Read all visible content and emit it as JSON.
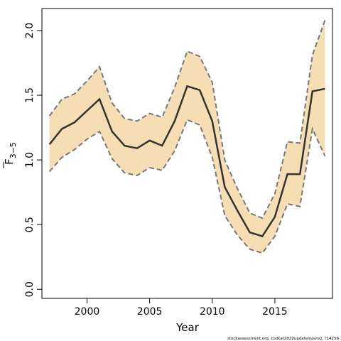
{
  "chart_data": {
    "type": "line",
    "xlabel": "Year",
    "ylabel": "F",
    "ylabel_subscript": "3−5",
    "xlim": [
      1996.4,
      2019.6
    ],
    "ylim": [
      -0.07,
      2.17
    ],
    "xticks": [
      2000,
      2005,
      2010,
      2015
    ],
    "xtick_labels": [
      "2000",
      "2005",
      "2010",
      "2015"
    ],
    "yticks": [
      0.0,
      0.5,
      1.0,
      1.5,
      2.0
    ],
    "ytick_labels": [
      "0.0",
      "0.5",
      "1.0",
      "1.5",
      "2.0"
    ],
    "grid": false,
    "x": [
      1997,
      1998,
      1999,
      2000,
      2001,
      2002,
      2003,
      2004,
      2005,
      2006,
      2007,
      2008,
      2009,
      2010,
      2011,
      2012,
      2013,
      2014,
      2015,
      2016,
      2017,
      2018,
      2019
    ],
    "series": [
      {
        "role": "estimate",
        "values": [
          1.12,
          1.24,
          1.29,
          1.38,
          1.47,
          1.22,
          1.11,
          1.09,
          1.15,
          1.11,
          1.3,
          1.57,
          1.54,
          1.3,
          0.79,
          0.61,
          0.44,
          0.41,
          0.56,
          0.89,
          0.89,
          1.53,
          1.55
        ],
        "color": "#333333"
      },
      {
        "role": "upper_bound",
        "values": [
          1.34,
          1.47,
          1.51,
          1.61,
          1.72,
          1.44,
          1.32,
          1.3,
          1.36,
          1.33,
          1.56,
          1.84,
          1.8,
          1.6,
          1.0,
          0.78,
          0.59,
          0.55,
          0.74,
          1.14,
          1.13,
          1.81,
          2.08
        ],
        "color": "#777777"
      },
      {
        "role": "lower_bound",
        "values": [
          0.91,
          1.02,
          1.08,
          1.16,
          1.22,
          1.01,
          0.9,
          0.88,
          0.94,
          0.92,
          1.07,
          1.31,
          1.27,
          1.02,
          0.57,
          0.42,
          0.31,
          0.28,
          0.41,
          0.66,
          0.64,
          1.24,
          1.03
        ],
        "color": "#777777"
      }
    ],
    "band_color": "#f5deb3"
  },
  "watermark": "stockassessment.org, codkat2020updateinputs2, r14256"
}
